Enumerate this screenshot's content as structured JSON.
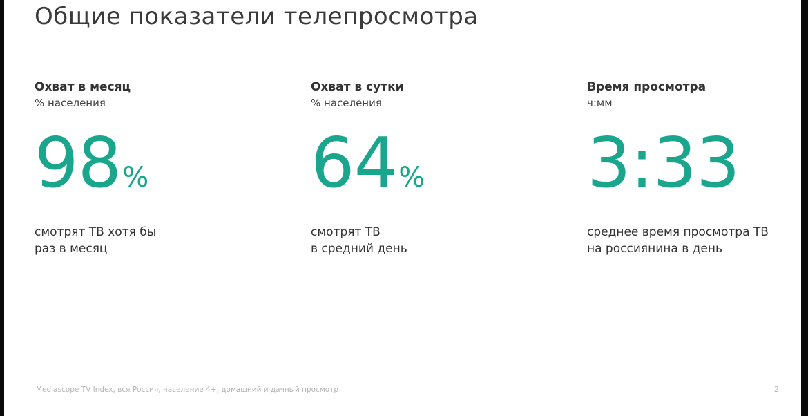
{
  "slide": {
    "title": "Общие показатели телепросмотра",
    "metrics": [
      {
        "heading": "Охват в месяц",
        "subheading": "% населения",
        "value": "98",
        "unit": "%",
        "description_line1": "смотрят ТВ хотя бы",
        "description_line2": "раз в месяц"
      },
      {
        "heading": "Охват в сутки",
        "subheading": "% населения",
        "value": "64",
        "unit": "%",
        "description_line1": "смотрят ТВ",
        "description_line2": "в средний день"
      },
      {
        "heading": "Время просмотра",
        "subheading": "ч:мм",
        "value": "3:33",
        "unit": "",
        "description_line1": "среднее время просмотра ТВ",
        "description_line2": "на россиянина в день"
      }
    ],
    "footer": "Mediascope TV Index, вся Россия, население 4+, домашний и дачный просмотр",
    "page_number": "2",
    "accent_color": "#1aa68d"
  }
}
